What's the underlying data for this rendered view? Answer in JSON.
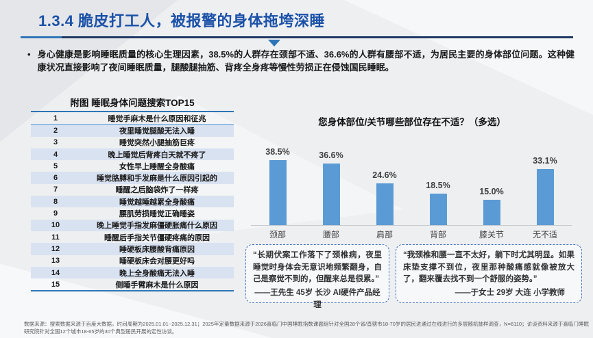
{
  "page": {
    "title": "1.3.4 脆皮打工人，被报警的身体拖垮深睡",
    "bullet_symbol": "•",
    "bullet_text": "身心健康是影响睡眠质量的核心生理因素，38.5%的人群存在颈部不适、36.6%的人群有腰部不适，为居民主要的身体部位问题。这种健康状况直接影响了夜间睡眠质量，腿酸腿抽筋、背疼全身疼等慢性劳损正在侵蚀国民睡眠。",
    "footer": "数据来源：搜索数据来源于百度大数据，时间周期为2025.01.01~2025.12.31；2025年定量数据来源于2026喜临门中国睡眠指数课题组针对全国28个省/直辖市18-70岁的居民进通过在线进行的多层随机抽样调查，N=6110；访谈资料来源于喜临门睡眠研究院针对全国12个城市18-65岁的30个典型居民开展的定性访谈。"
  },
  "left_panel": {
    "table_title": "附图 睡眠身体问题搜索TOP15",
    "rows": [
      {
        "rank": "1",
        "query": "睡觉手麻木是什么原因和征兆"
      },
      {
        "rank": "2",
        "query": "夜里睡觉腿酸无法入睡"
      },
      {
        "rank": "3",
        "query": "睡觉突然小腿抽筋巨疼"
      },
      {
        "rank": "4",
        "query": "晚上睡觉后背疼白天就不疼了"
      },
      {
        "rank": "5",
        "query": "女性早上睡醒全身酸痛"
      },
      {
        "rank": "6",
        "query": "睡觉胳膊和手发麻是什么原因引起的"
      },
      {
        "rank": "7",
        "query": "睡醒之后脑袋炸了一样疼"
      },
      {
        "rank": "8",
        "query": "睡觉越睡越累全身酸痛"
      },
      {
        "rank": "9",
        "query": "腰肌劳损睡觉正确睡姿"
      },
      {
        "rank": "10",
        "query": "晚上睡觉手指发麻僵硬胀痛什么原因"
      },
      {
        "rank": "11",
        "query": "睡醒后手指关节僵硬疼痛的原因"
      },
      {
        "rank": "12",
        "query": "睡硬板床腰酸背痛原因"
      },
      {
        "rank": "13",
        "query": "睡硬板床会对腰更好吗"
      },
      {
        "rank": "14",
        "query": "晚上全身酸痛无法入睡"
      },
      {
        "rank": "15",
        "query": "侧睡手臂麻木是什么原因"
      }
    ]
  },
  "chart_data": {
    "type": "bar",
    "title": "您身体部位/关节哪些部位存在不适？（多选）",
    "categories": [
      "颈部",
      "腰部",
      "肩部",
      "背部",
      "膝关节",
      "无不适"
    ],
    "values": [
      38.5,
      36.6,
      24.6,
      18.5,
      15.0,
      33.1
    ],
    "value_labels": [
      "38.5%",
      "36.6%",
      "24.6%",
      "18.5%",
      "15.0%",
      "33.1%"
    ],
    "xlabel": "",
    "ylabel": "",
    "ylim": [
      0,
      45
    ],
    "grid": false,
    "legend": "none",
    "bar_color": "#5B9BD5"
  },
  "quotes": [
    {
      "text": "“长期伏案工作落下了颈椎病，夜里睡觉时身体会无意识地频繁翻身，自己是察觉不到的，但醒来总是很累。”",
      "attribution": "——王先生 45岁 长沙 AI硬件产品经理"
    },
    {
      "text": "“我颈椎和腰一直不太好，躺下时尤其明显。如果床垫支撑不到位，夜里那种酸痛感就像被放大了，翻来覆去找不到一个舒服的姿势。”",
      "attribution": "——于女士 29岁 大连 小学教师"
    }
  ],
  "colors": {
    "title_blue": "#1B51A8",
    "divider_navy": "#1F3864",
    "triangle_blue": "#2E75B6",
    "bar_blue": "#5B9BD5",
    "table_alt_row": "#D9E2F1",
    "quote_border": "#4472C4",
    "footer_gray": "#595959"
  }
}
